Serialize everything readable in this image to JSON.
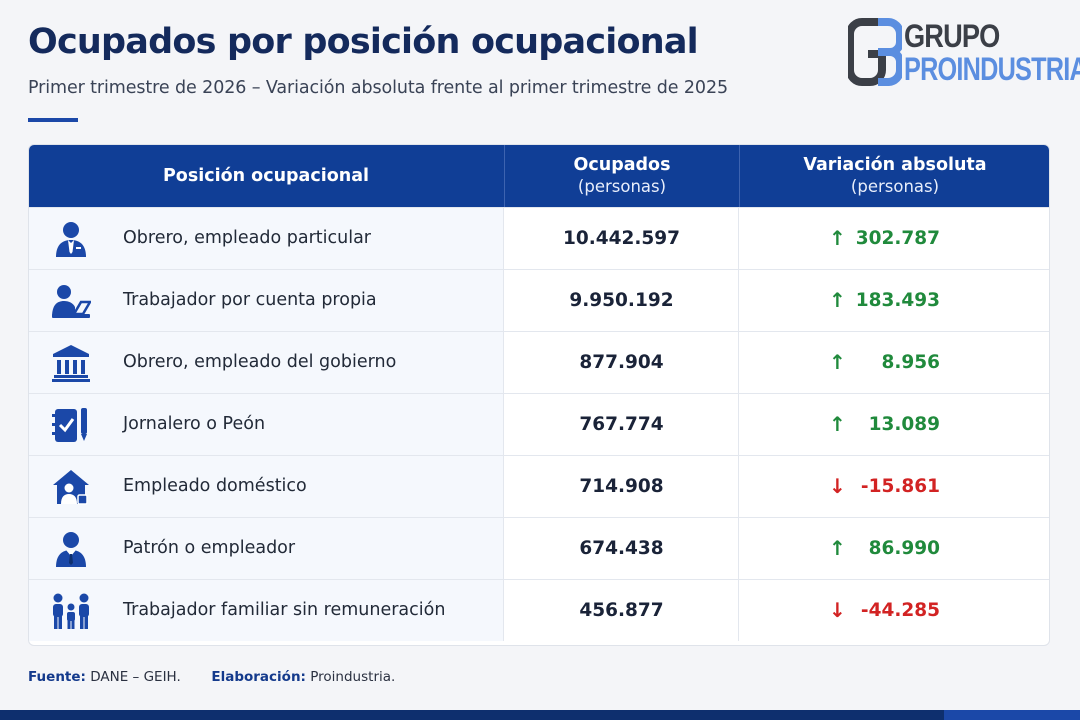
{
  "header": {
    "title": "Ocupados por posición ocupacional",
    "subtitle": "Primer trimestre de 2026 – Variación absoluta frente al primer trimestre de 2025"
  },
  "logo": {
    "line1": "GRUPO",
    "line2": "PROINDUSTRIA",
    "color_dark": "#3b3f47",
    "color_accent": "#5b8ee0"
  },
  "table": {
    "columns": [
      {
        "label": "Posición ocupacional",
        "sub": ""
      },
      {
        "label": "Ocupados",
        "sub": "(personas)"
      },
      {
        "label": "Variación absoluta",
        "sub": "(personas)"
      }
    ],
    "rows": [
      {
        "icon": "employee-icon",
        "position": "Obrero, empleado particular",
        "ocupados": "10.442.597",
        "variacion": "302.787",
        "trend": "up"
      },
      {
        "icon": "laptop-worker-icon",
        "position": "Trabajador por cuenta propia",
        "ocupados": "9.950.192",
        "variacion": "183.493",
        "trend": "up"
      },
      {
        "icon": "government-building-icon",
        "position": "Obrero, empleado del gobierno",
        "ocupados": "877.904",
        "variacion": "8.956",
        "trend": "up"
      },
      {
        "icon": "clipboard-tool-icon",
        "position": "Jornalero o Peón",
        "ocupados": "767.774",
        "variacion": "13.089",
        "trend": "up"
      },
      {
        "icon": "house-person-icon",
        "position": "Empleado doméstico",
        "ocupados": "714.908",
        "variacion": "-15.861",
        "trend": "down"
      },
      {
        "icon": "boss-icon",
        "position": "Patrón o empleador",
        "ocupados": "674.438",
        "variacion": "86.990",
        "trend": "up"
      },
      {
        "icon": "family-icon",
        "position": "Trabajador familiar sin remuneración",
        "ocupados": "456.877",
        "variacion": "-44.285",
        "trend": "down"
      }
    ],
    "arrows": {
      "up": "↑",
      "down": "↓"
    },
    "colors": {
      "header": "#103e96",
      "up": "#208a3c",
      "down": "#d22323"
    }
  },
  "chart_data": {
    "type": "table",
    "title": "Ocupados por posición ocupacional",
    "subtitle": "Primer trimestre de 2026 – Variación absoluta frente al primer trimestre de 2025",
    "columns": [
      "Posición ocupacional",
      "Ocupados (personas)",
      "Variación absoluta (personas)"
    ],
    "categories": [
      "Obrero, empleado particular",
      "Trabajador por cuenta propia",
      "Obrero, empleado del gobierno",
      "Jornalero o Peón",
      "Empleado doméstico",
      "Patrón o empleador",
      "Trabajador familiar sin remuneración"
    ],
    "series": [
      {
        "name": "Ocupados",
        "values": [
          10442597,
          9950192,
          877904,
          767774,
          714908,
          674438,
          456877
        ]
      },
      {
        "name": "Variación absoluta",
        "values": [
          302787,
          183493,
          8956,
          13089,
          -15861,
          86990,
          -44285
        ]
      }
    ]
  },
  "footer": {
    "source_label": "Fuente:",
    "source_value": "DANE – GEIH.",
    "by_label": "Elaboración:",
    "by_value": "Proindustria."
  }
}
